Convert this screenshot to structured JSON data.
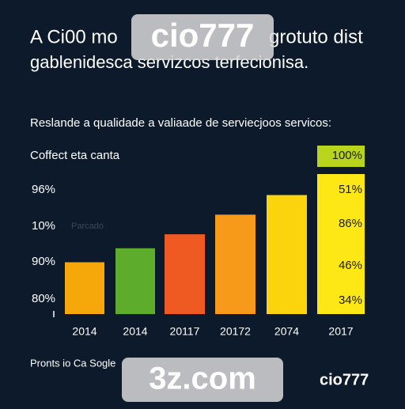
{
  "chart_data": {
    "type": "bar",
    "title": "A Ci00 mo",
    "title_end": "grotuto dist",
    "title_line2": "gablenidesca servizcos terfecionisa.",
    "subtitle": "Reslande a qualidade a valiaade de serviecjoos servicos:",
    "axis_caption": "Coffect eta canta",
    "faint_label": "Parcado",
    "left_labels": [
      "96%",
      "10%",
      "90%",
      "80%"
    ],
    "right_labels": [
      "100%",
      "51%",
      "86%",
      "46%",
      "34%"
    ],
    "categories": [
      "2014",
      "2014",
      "20117",
      "20172",
      "2074",
      "2017"
    ],
    "values": [
      37,
      47,
      57,
      71,
      85,
      100
    ],
    "colors": [
      "#f6a70a",
      "#5eac2c",
      "#ef5a22",
      "#f79a1c",
      "#fbd40d",
      "#fde816"
    ],
    "ylim": [
      0,
      100
    ],
    "footer": "Pronts io Ca Sogle",
    "watermark_top": "cio777",
    "watermark_bottom": "3z.com",
    "logo": "cio777"
  }
}
